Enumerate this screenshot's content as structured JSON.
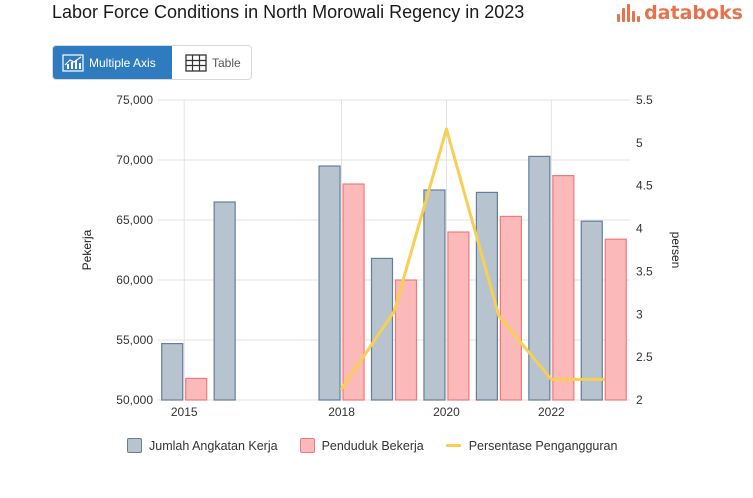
{
  "header": {
    "title": "Labor Force Conditions in North Morowali Regency in 2023",
    "brand": "databoks"
  },
  "toggle": {
    "multiple_axis_label": "Multiple Axis",
    "table_label": "Table"
  },
  "colors": {
    "angkatan_fill": "#b7c3cf",
    "angkatan_stroke": "#647e9a",
    "penduduk_fill": "#fbb9b9",
    "penduduk_stroke": "#ee7b7b",
    "line": "#f7cf52",
    "active_tab": "#2e7bbf",
    "brand": "#e8734a"
  },
  "chart_data": {
    "type": "bar",
    "title": "Labor Force Conditions in North Morowali Regency in 2023",
    "x_tick_labels": [
      "2015",
      "2018",
      "2020",
      "2022"
    ],
    "categories": [
      "2015",
      "2016",
      "2017",
      "2018",
      "2019",
      "2020",
      "2021",
      "2022",
      "2023"
    ],
    "series": [
      {
        "name": "Jumlah Angkatan Kerja",
        "type": "bar",
        "axis": "left",
        "values": [
          54700,
          66500,
          null,
          69500,
          61800,
          67500,
          67300,
          70300,
          64900
        ]
      },
      {
        "name": "Penduduk Bekerja",
        "type": "bar",
        "axis": "left",
        "values": [
          51800,
          null,
          null,
          68000,
          60000,
          64000,
          65300,
          68700,
          63400
        ]
      },
      {
        "name": "Persentase Pengangguran",
        "type": "line",
        "axis": "right",
        "values": [
          null,
          null,
          null,
          2.13,
          3.03,
          5.16,
          2.98,
          2.24,
          2.24
        ]
      }
    ],
    "ylabel": "Pekerja",
    "y2label": "persen",
    "ylim": [
      50000,
      75000
    ],
    "y2lim": [
      2,
      5.5
    ],
    "y_ticks": [
      "50,000",
      "55,000",
      "60,000",
      "65,000",
      "70,000",
      "75,000"
    ],
    "y2_ticks": [
      "2",
      "2.5",
      "3",
      "3.5",
      "4",
      "4.5",
      "5",
      "5.5"
    ],
    "legend_position": "bottom"
  }
}
